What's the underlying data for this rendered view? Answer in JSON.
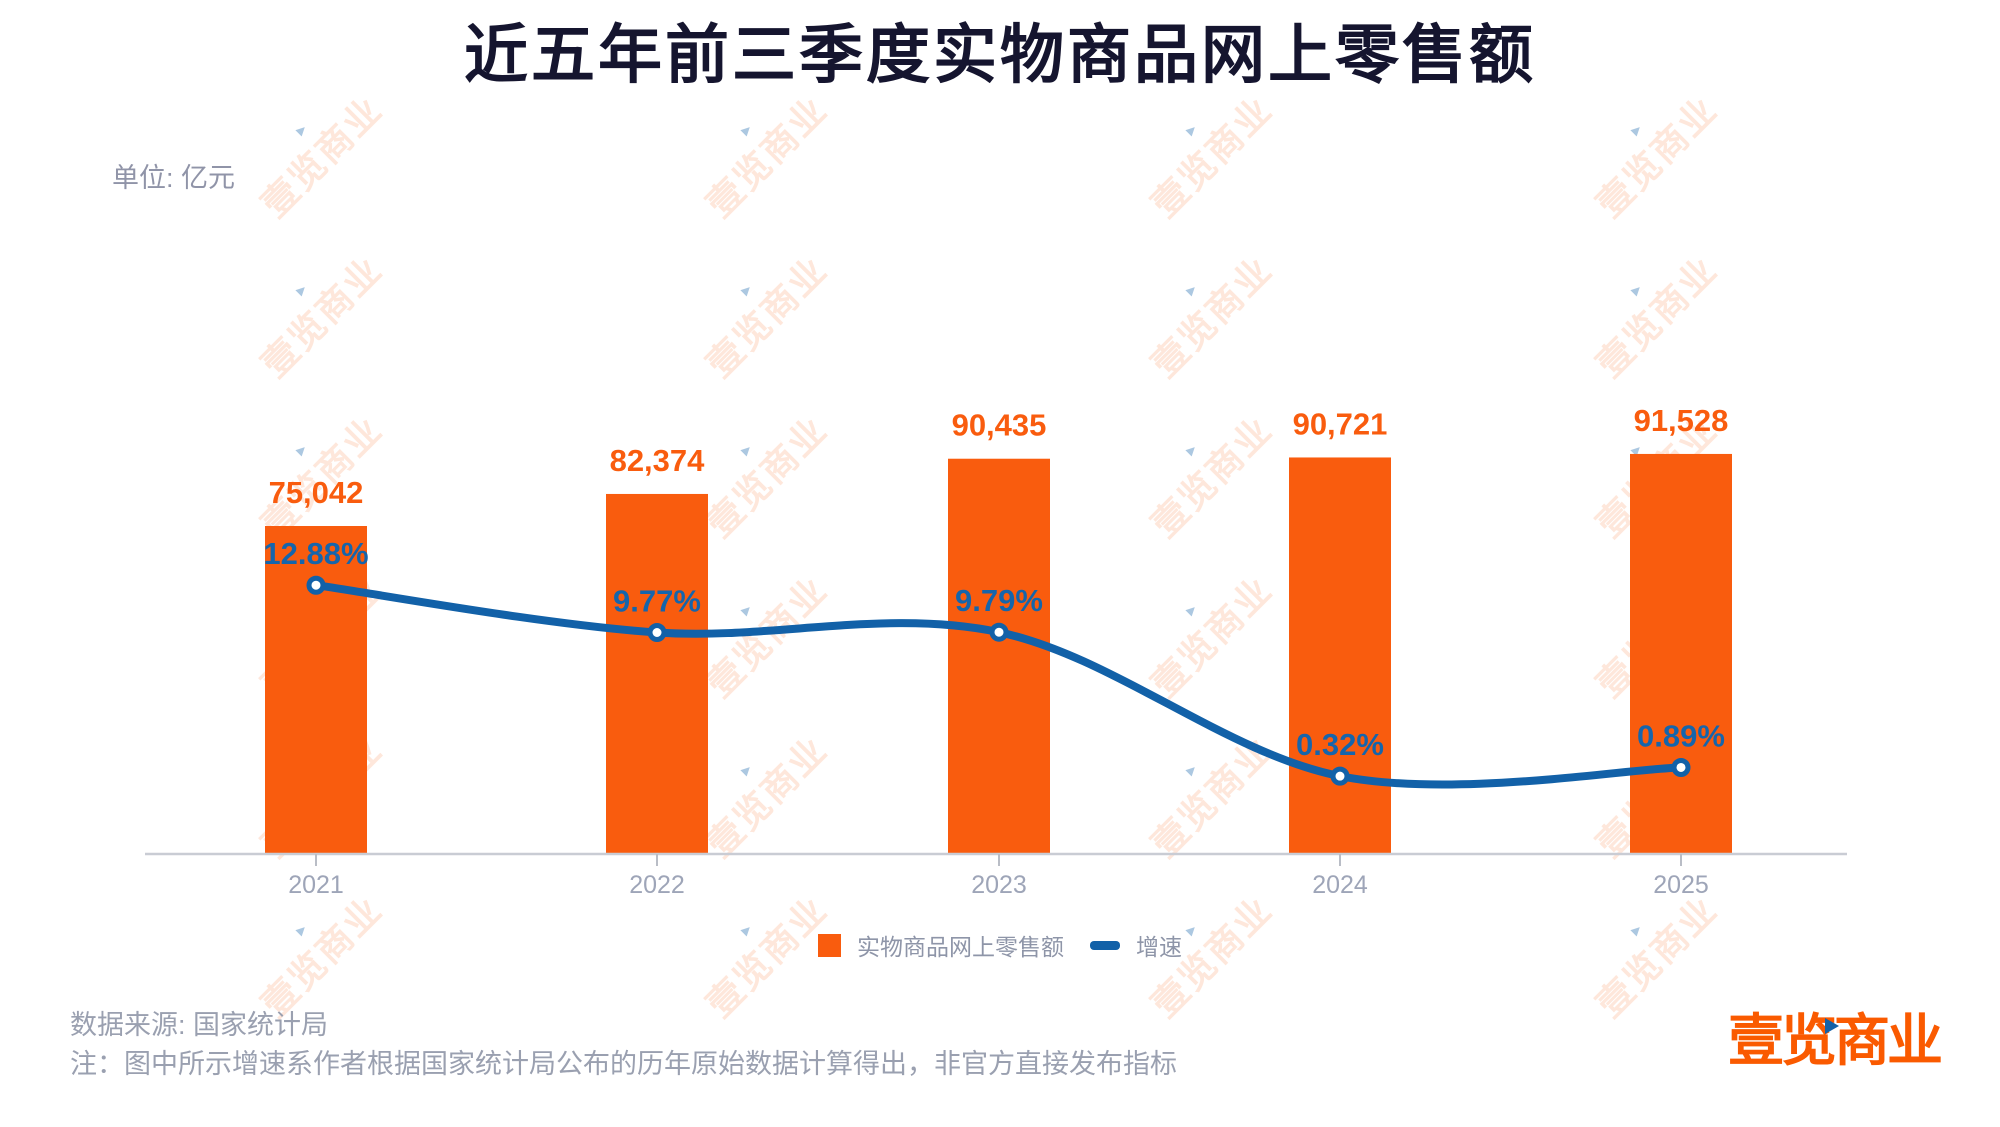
{
  "title": "近五年前三季度实物商品网上零售额",
  "unit_label": "单位: 亿元",
  "chart_data": {
    "type": "bar+line",
    "title": "近五年前三季度实物商品网上零售额",
    "unit": "亿元",
    "categories": [
      "2021",
      "2022",
      "2023",
      "2024",
      "2025"
    ],
    "series": [
      {
        "name": "实物商品网上零售额",
        "type": "bar",
        "values": [
          75042,
          82374,
          90435,
          90721,
          91528
        ],
        "labels": [
          "75,042",
          "82,374",
          "90,435",
          "90,721",
          "91,528"
        ],
        "color": "#f95c0e"
      },
      {
        "name": "增速",
        "type": "line",
        "values": [
          12.88,
          9.77,
          9.79,
          0.32,
          0.89
        ],
        "labels": [
          "12.88%",
          "9.77%",
          "9.79%",
          "0.32%",
          "0.89%"
        ],
        "color": "#1261a8"
      }
    ],
    "xlabel": "",
    "ylabel": "单位: 亿元",
    "y_axis_visible": false,
    "grid": false,
    "baseline_at_zero": true,
    "legend_position": "bottom"
  },
  "legend": {
    "items": [
      {
        "label": "实物商品网上零售额",
        "swatch": "square",
        "color": "#f95c0e"
      },
      {
        "label": "增速",
        "swatch": "dash",
        "color": "#1261a8"
      }
    ]
  },
  "footer": {
    "source": "数据来源: 国家统计局",
    "note": "注：图中所示增速系作者根据国家统计局公布的历年原始数据计算得出，非官方直接发布指标"
  },
  "logo": {
    "text": "壹览商业",
    "triangle_icon": "play-triangle"
  },
  "watermark": {
    "text": "壹览商业"
  },
  "colors": {
    "bar": "#f95c0e",
    "value_label": "#f95c0e",
    "line": "#1261a8",
    "pct_label": "#1565ac",
    "title": "#15152f",
    "axis": "#c9ccd4",
    "tick": "#b9bdc6",
    "year_label": "#9ea5b8",
    "legend_text": "#8e95a8",
    "footer_text": "#9aa0b0",
    "unit_label": "#9094a8",
    "logo": "#fa5a00",
    "logo_triangle": "#1261a8",
    "watermark": "rgba(249,92,13,0.15)"
  }
}
